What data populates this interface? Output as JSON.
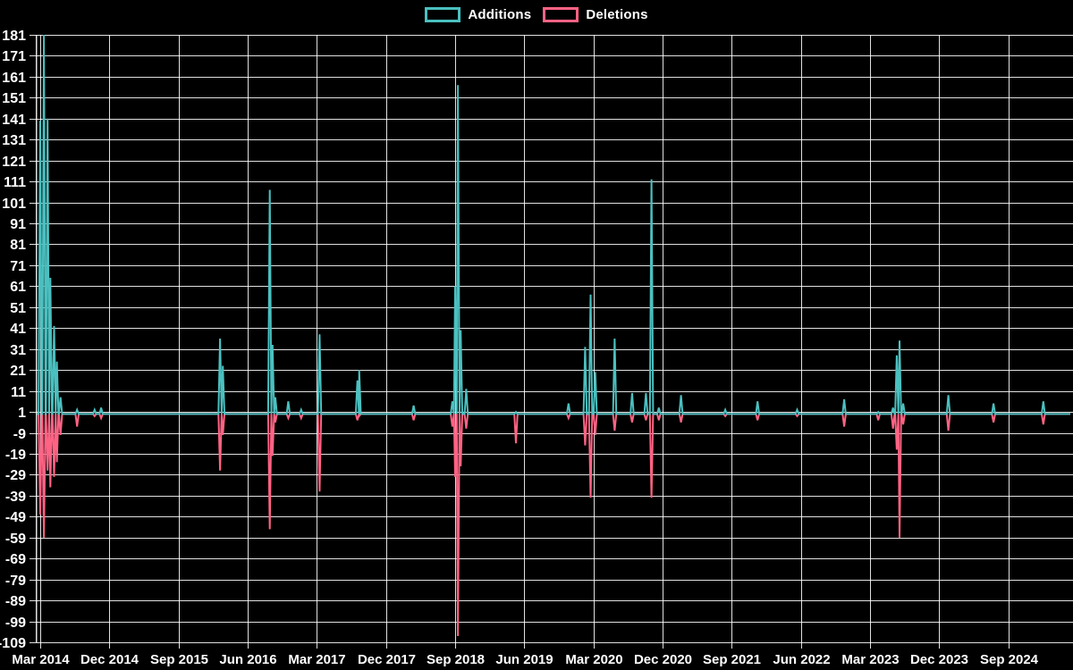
{
  "legend": {
    "items": [
      {
        "label": "Additions",
        "color": "#4BC0C0"
      },
      {
        "label": "Deletions",
        "color": "#FF6384"
      }
    ]
  },
  "chart_data": {
    "type": "line",
    "title": "",
    "xlabel": "",
    "ylabel": "",
    "background_color": "#000000",
    "grid": true,
    "grid_color": "#ffffff",
    "text_color": "#ffffff",
    "legend_position": "top-center",
    "y_ticks": [
      181,
      171,
      161,
      151,
      141,
      131,
      121,
      111,
      101,
      91,
      81,
      71,
      61,
      51,
      41,
      31,
      21,
      11,
      1,
      -9,
      -19,
      -29,
      -39,
      -49,
      -59,
      -69,
      -79,
      -89,
      -99,
      -109
    ],
    "ylim": [
      -109,
      181
    ],
    "x_tick_labels": [
      "Mar 2014",
      "Dec 2014",
      "Sep 2015",
      "Jun 2016",
      "Mar 2017",
      "Dec 2017",
      "Sep 2018",
      "Jun 2019",
      "Mar 2020",
      "Dec 2020",
      "Sep 2021",
      "Jun 2022",
      "Mar 2023",
      "Dec 2023",
      "Sep 2024"
    ],
    "series": [
      {
        "name": "Additions",
        "color": "#4BC0C0"
      },
      {
        "name": "Deletions",
        "color": "#FF6384"
      }
    ],
    "baseline_value": 0,
    "note": "Weekly series; values are 0 between listed spike events. t = decimal year.",
    "events": [
      {
        "t": 2014.17,
        "additions": 140,
        "deletions": -48
      },
      {
        "t": 2014.21,
        "additions": 181,
        "deletions": -59
      },
      {
        "t": 2014.25,
        "additions": 141,
        "deletions": -27
      },
      {
        "t": 2014.28,
        "additions": 65,
        "deletions": -35
      },
      {
        "t": 2014.32,
        "additions": 42,
        "deletions": -30
      },
      {
        "t": 2014.35,
        "additions": 25,
        "deletions": -23
      },
      {
        "t": 2014.39,
        "additions": 8,
        "deletions": -10
      },
      {
        "t": 2014.57,
        "additions": 2,
        "deletions": -6
      },
      {
        "t": 2014.76,
        "additions": 2,
        "deletions": -1
      },
      {
        "t": 2014.83,
        "additions": 3,
        "deletions": -2
      },
      {
        "t": 2016.12,
        "additions": 36,
        "deletions": -27
      },
      {
        "t": 2016.15,
        "additions": 23,
        "deletions": -10
      },
      {
        "t": 2016.66,
        "additions": 107,
        "deletions": -55
      },
      {
        "t": 2016.69,
        "additions": 33,
        "deletions": -20
      },
      {
        "t": 2016.72,
        "additions": 8,
        "deletions": -4
      },
      {
        "t": 2016.86,
        "additions": 6,
        "deletions": -2
      },
      {
        "t": 2017.0,
        "additions": 2,
        "deletions": -2
      },
      {
        "t": 2017.2,
        "additions": 38,
        "deletions": -37
      },
      {
        "t": 2017.61,
        "additions": 16,
        "deletions": -3
      },
      {
        "t": 2017.63,
        "additions": 21,
        "deletions": -1
      },
      {
        "t": 2018.22,
        "additions": 4,
        "deletions": -3
      },
      {
        "t": 2018.64,
        "additions": 6,
        "deletions": -6
      },
      {
        "t": 2018.67,
        "additions": 61,
        "deletions": -30
      },
      {
        "t": 2018.7,
        "additions": 157,
        "deletions": -106
      },
      {
        "t": 2018.73,
        "additions": 40,
        "deletions": -25
      },
      {
        "t": 2018.79,
        "additions": 12,
        "deletions": -7
      },
      {
        "t": 2019.33,
        "additions": 1,
        "deletions": -14
      },
      {
        "t": 2019.9,
        "additions": 5,
        "deletions": -2
      },
      {
        "t": 2020.08,
        "additions": 32,
        "deletions": -15
      },
      {
        "t": 2020.14,
        "additions": 57,
        "deletions": -40
      },
      {
        "t": 2020.19,
        "additions": 20,
        "deletions": -10
      },
      {
        "t": 2020.4,
        "additions": 36,
        "deletions": -8
      },
      {
        "t": 2020.59,
        "additions": 10,
        "deletions": -4
      },
      {
        "t": 2020.74,
        "additions": 10,
        "deletions": -3
      },
      {
        "t": 2020.8,
        "additions": 112,
        "deletions": -40
      },
      {
        "t": 2020.88,
        "additions": 3,
        "deletions": -3
      },
      {
        "t": 2021.12,
        "additions": 9,
        "deletions": -4
      },
      {
        "t": 2021.6,
        "additions": 2,
        "deletions": -1
      },
      {
        "t": 2021.95,
        "additions": 6,
        "deletions": -3
      },
      {
        "t": 2022.38,
        "additions": 2,
        "deletions": -1
      },
      {
        "t": 2022.89,
        "additions": 7,
        "deletions": -6
      },
      {
        "t": 2023.26,
        "additions": 1,
        "deletions": -3
      },
      {
        "t": 2023.42,
        "additions": 3,
        "deletions": -7
      },
      {
        "t": 2023.46,
        "additions": 28,
        "deletions": -17
      },
      {
        "t": 2023.49,
        "additions": 35,
        "deletions": -59
      },
      {
        "t": 2023.53,
        "additions": 5,
        "deletions": -5
      },
      {
        "t": 2024.02,
        "additions": 9,
        "deletions": -8
      },
      {
        "t": 2024.51,
        "additions": 5,
        "deletions": -4
      },
      {
        "t": 2025.05,
        "additions": 6,
        "deletions": -5
      }
    ]
  }
}
